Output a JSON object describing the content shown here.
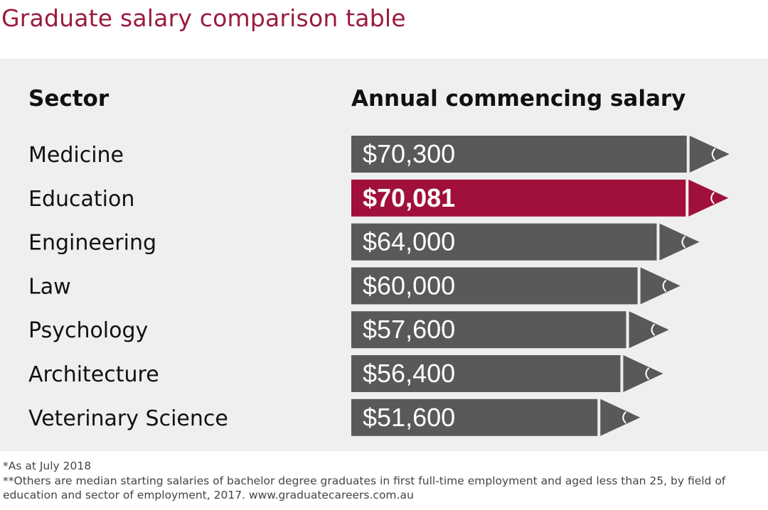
{
  "title": "Graduate salary comparison table",
  "colors": {
    "accent": "#9b1b3c",
    "bar": "#595959",
    "highlight": "#a0103a",
    "panel": "#efefef"
  },
  "chart_data": {
    "type": "bar",
    "orientation": "horizontal",
    "column_headers": {
      "category": "Sector",
      "value": "Annual commencing salary"
    },
    "categories": [
      "Medicine",
      "Education",
      "Engineering",
      "Law",
      "Psychology",
      "Architecture",
      "Veterinary Science"
    ],
    "values": [
      70300,
      70081,
      64000,
      60000,
      57600,
      56400,
      51600
    ],
    "value_labels": [
      "$70,300",
      "$70,081",
      "$64,000",
      "$60,000",
      "$57,600",
      "$56,400",
      "$51,600"
    ],
    "highlighted": "Education",
    "bar_style": "pencil"
  },
  "footnotes": [
    "*As at July 2018",
    "**Others are median starting salaries of bachelor degree graduates in first full-time employment and aged less than 25, by field of",
    "education and sector of employment, 2017. www.graduatecareers.com.au"
  ]
}
